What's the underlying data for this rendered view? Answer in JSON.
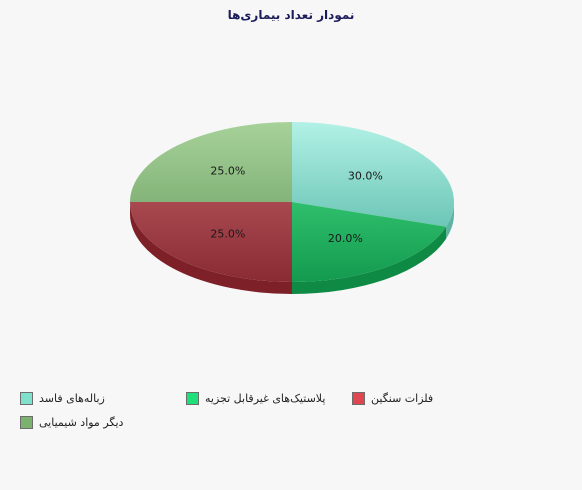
{
  "chart_data": {
    "type": "pie",
    "title": "نمودار تعداد بیماری‌ها",
    "categories": [
      "زباله‌های فاسد",
      "پلاستیک‌های غیرقابل تجزیه",
      "فلزات سنگین",
      "دیگر مواد شیمیایی"
    ],
    "values": [
      30.0,
      20.0,
      25.0,
      25.0
    ],
    "value_labels": [
      "30.0%",
      "20.0%",
      "25.0%",
      "25.0%"
    ],
    "colors": [
      "#7fe0cc",
      "#1fc46a",
      "#c23a45",
      "#7bb26f"
    ],
    "legend_position": "bottom",
    "style": "3d"
  }
}
